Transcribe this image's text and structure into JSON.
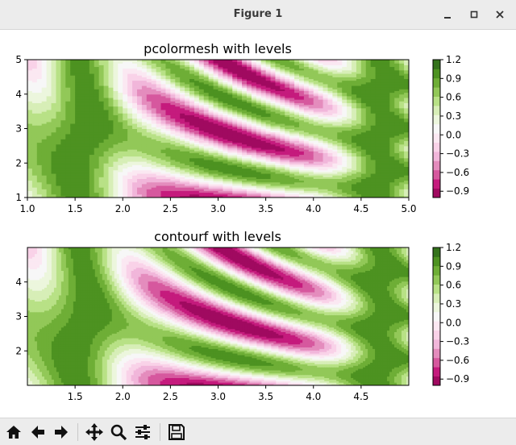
{
  "window": {
    "title": "Figure 1"
  },
  "toolbar": {
    "items": [
      {
        "name": "home-button",
        "icon": "home-icon"
      },
      {
        "name": "back-button",
        "icon": "arrow-left-icon"
      },
      {
        "name": "forward-button",
        "icon": "arrow-right-icon"
      },
      {
        "name": "pan-button",
        "icon": "move-icon"
      },
      {
        "name": "zoom-button",
        "icon": "magnifier-icon"
      },
      {
        "name": "configure-subplots-button",
        "icon": "sliders-icon"
      },
      {
        "name": "save-button",
        "icon": "floppy-disk-icon"
      }
    ]
  },
  "chart_data": [
    {
      "type": "heatmap",
      "title": "pcolormesh with levels",
      "xlim": [
        1.0,
        5.0
      ],
      "ylim": [
        1.0,
        5.0
      ],
      "xticks": [
        "1.0",
        "1.5",
        "2.0",
        "2.5",
        "3.0",
        "3.5",
        "4.0",
        "4.5",
        "5.0"
      ],
      "yticks": [
        "1",
        "2",
        "3",
        "4",
        "5"
      ],
      "colormap": "PiYG",
      "color_range": [
        -1.0,
        1.2
      ],
      "colorbar_ticks": [
        "1.2",
        "0.9",
        "0.6",
        "0.3",
        "0.0",
        "−0.3",
        "−0.6",
        "−0.9"
      ],
      "levels": 15
    },
    {
      "type": "heatmap",
      "title": "contourf with levels",
      "xlim": [
        1.0,
        5.0
      ],
      "ylim": [
        1.0,
        5.0
      ],
      "xticks": [
        "1.5",
        "2.0",
        "2.5",
        "3.0",
        "3.5",
        "4.0",
        "4.5"
      ],
      "yticks": [
        "2",
        "3",
        "4"
      ],
      "colormap": "PiYG",
      "color_range": [
        -1.0,
        1.2
      ],
      "colorbar_ticks": [
        "1.2",
        "0.9",
        "0.6",
        "0.3",
        "0.0",
        "−0.3",
        "−0.6",
        "−0.9"
      ],
      "levels": 15
    }
  ]
}
